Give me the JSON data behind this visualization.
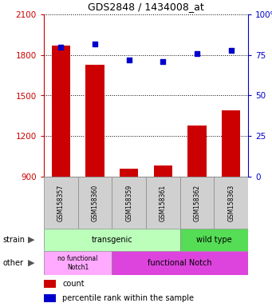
{
  "title": "GDS2848 / 1434008_at",
  "samples": [
    "GSM158357",
    "GSM158360",
    "GSM158359",
    "GSM158361",
    "GSM158362",
    "GSM158363"
  ],
  "counts": [
    1870,
    1730,
    960,
    980,
    1280,
    1390
  ],
  "percentiles": [
    80,
    82,
    72,
    71,
    76,
    78
  ],
  "ylim_left": [
    900,
    2100
  ],
  "ylim_right": [
    0,
    100
  ],
  "yticks_left": [
    900,
    1200,
    1500,
    1800,
    2100
  ],
  "yticks_right": [
    0,
    25,
    50,
    75,
    100
  ],
  "bar_color": "#cc0000",
  "dot_color": "#0000cc",
  "strain_transgenic_cols": 4,
  "strain_wildtype_cols": 2,
  "other_nofunc_cols": 2,
  "other_func_cols": 4,
  "strain_transgenic_label": "transgenic",
  "strain_wildtype_label": "wild type",
  "other_nofunc_label": "no functional\nNotch1",
  "other_func_label": "functional Notch",
  "strain_color_transgenic": "#bbffbb",
  "strain_color_wildtype": "#55dd55",
  "other_color_nofunc": "#ffaaff",
  "other_color_func": "#dd44dd",
  "legend_count_label": "count",
  "legend_pct_label": "percentile rank within the sample",
  "left_axis_color": "#cc0000",
  "right_axis_color": "#0000cc",
  "sample_box_color": "#d0d0d0"
}
